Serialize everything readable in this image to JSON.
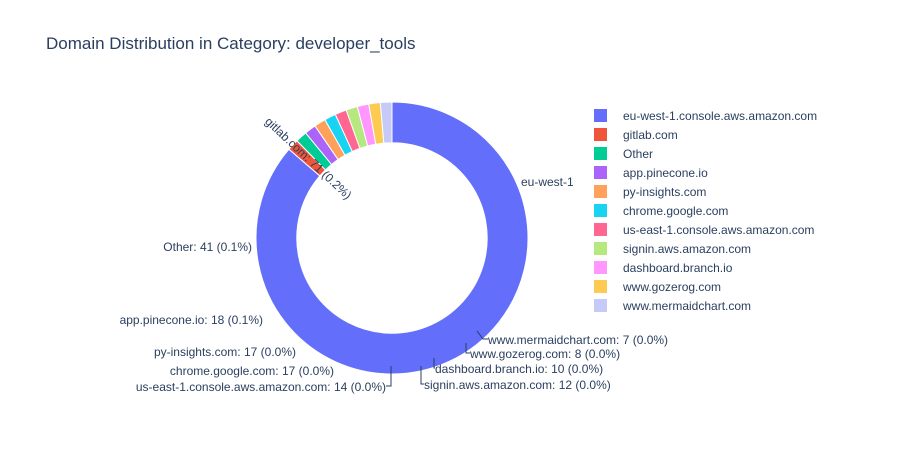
{
  "title": "Domain Distribution in Category: developer_tools",
  "chart_data": {
    "type": "pie",
    "hole": 0.7,
    "title": "Domain Distribution in Category: developer_tools",
    "legend_placement": "right",
    "slices": [
      {
        "label": "eu-west-1.console.aws.amazon.com",
        "value": 29658,
        "text": "eu-west-1",
        "color": "#636efa"
      },
      {
        "label": "gitlab.com",
        "value": 71,
        "text": "gitlab.com: 71 (0.2%)",
        "color": "#EF553B"
      },
      {
        "label": "Other",
        "value": 41,
        "text": "Other: 41 (0.1%)",
        "color": "#00cc96"
      },
      {
        "label": "app.pinecone.io",
        "value": 18,
        "text": "app.pinecone.io: 18 (0.1%)",
        "color": "#ab63fa"
      },
      {
        "label": "py-insights.com",
        "value": 17,
        "text": "py-insights.com: 17 (0.0%)",
        "color": "#FFA15A"
      },
      {
        "label": "chrome.google.com",
        "value": 17,
        "text": "chrome.google.com: 17 (0.0%)",
        "color": "#19d3f3"
      },
      {
        "label": "us-east-1.console.aws.amazon.com",
        "value": 14,
        "text": "us-east-1.console.aws.amazon.com: 14 (0.0%)",
        "color": "#FF6692"
      },
      {
        "label": "signin.aws.amazon.com",
        "value": 12,
        "text": "signin.aws.amazon.com: 12 (0.0%)",
        "color": "#B6E880"
      },
      {
        "label": "dashboard.branch.io",
        "value": 10,
        "text": "dashboard.branch.io: 10 (0.0%)",
        "color": "#FF97FF"
      },
      {
        "label": "www.gozerog.com",
        "value": 8,
        "text": "www.gozerog.com: 8 (0.0%)",
        "color": "#FECB52"
      },
      {
        "label": "www.mermaidchart.com",
        "value": 7,
        "text": "www.mermaidchart.com: 7 (0.0%)",
        "color": "#c6caf9"
      }
    ]
  }
}
